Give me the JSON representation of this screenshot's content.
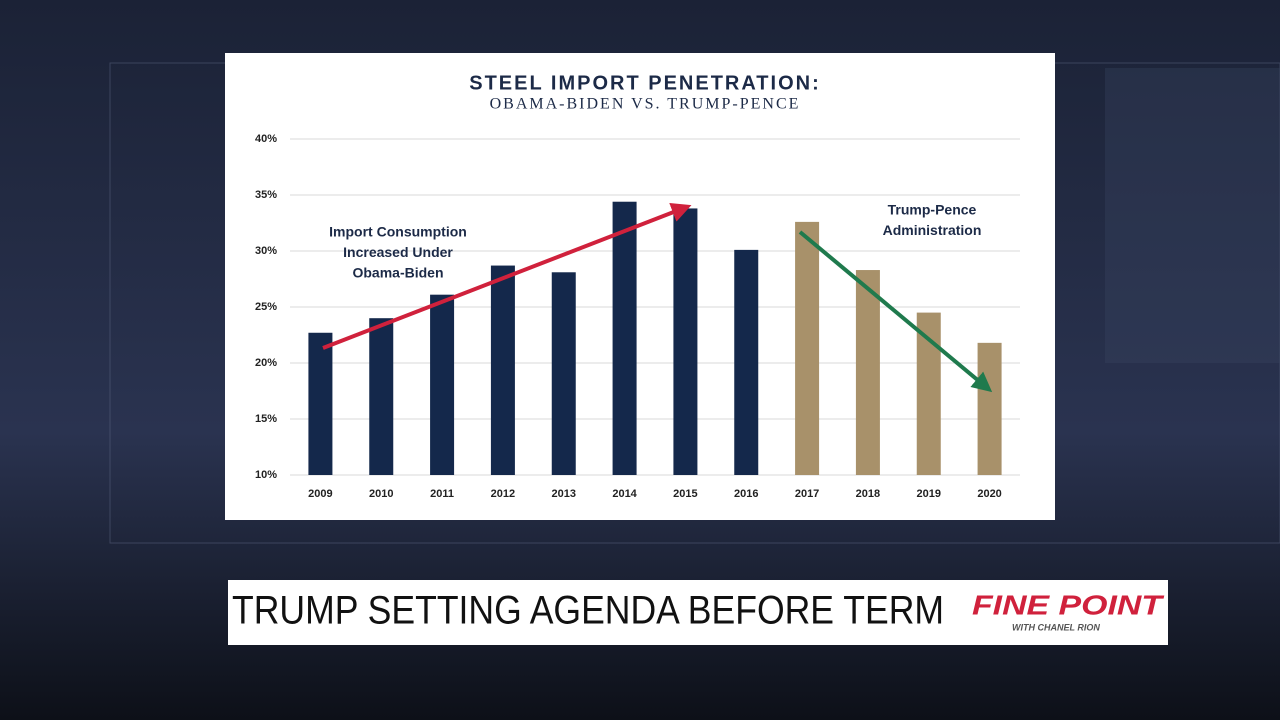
{
  "chart_data": {
    "type": "bar",
    "title": "STEEL IMPORT PENETRATION:",
    "subtitle": "OBAMA-BIDEN VS. TRUMP-PENCE",
    "categories": [
      "2009",
      "2010",
      "2011",
      "2012",
      "2013",
      "2014",
      "2015",
      "2016",
      "2017",
      "2018",
      "2019",
      "2020"
    ],
    "values": [
      22.7,
      24.0,
      26.1,
      28.7,
      28.1,
      34.4,
      33.8,
      30.1,
      32.6,
      28.3,
      24.5,
      21.8
    ],
    "colors": [
      "#14284b",
      "#14284b",
      "#14284b",
      "#14284b",
      "#14284b",
      "#14284b",
      "#14284b",
      "#14284b",
      "#a8916a",
      "#a8916a",
      "#a8916a",
      "#a8916a"
    ],
    "ylim": [
      10,
      40
    ],
    "yticks": [
      {
        "value": 10,
        "label": "10%"
      },
      {
        "value": 15,
        "label": "15%"
      },
      {
        "value": 20,
        "label": "20%"
      },
      {
        "value": 25,
        "label": "25%"
      },
      {
        "value": 30,
        "label": "30%"
      },
      {
        "value": 35,
        "label": "35%"
      },
      {
        "value": 40,
        "label": "40%"
      }
    ],
    "grid": true,
    "annotations": [
      {
        "lines": [
          "Import Consumption",
          "Increased Under",
          "Obama-Biden"
        ]
      },
      {
        "lines": [
          "Trump-Pence",
          "Administration"
        ]
      }
    ]
  },
  "banner": {
    "headline": "TRUMP SETTING AGENDA BEFORE TERM",
    "logo": "FINE POINT",
    "logo_sub": "WITH CHANEL RION"
  }
}
